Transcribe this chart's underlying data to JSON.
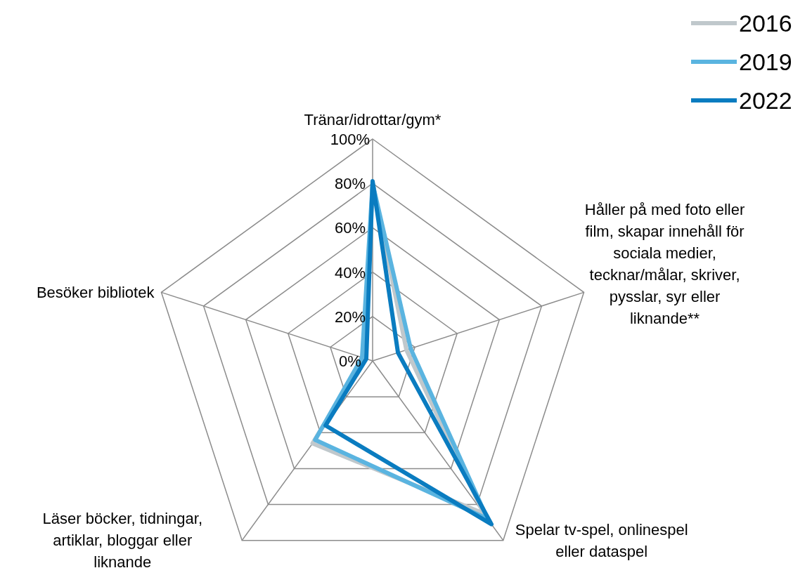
{
  "chart_data": {
    "type": "radar",
    "categories": [
      "Tränar/idrottar/gym*",
      "Håller på med foto eller film, skapar innehåll för sociala medier, tecknar/målar, skriver, pysslar, syr eller liknande**",
      "Spelar tv-spel, onlinespel eller dataspel",
      "Läser böcker, tidningar, artiklar, bloggar eller liknande",
      "Besöker bibliotek"
    ],
    "series": [
      {
        "name": "2016",
        "color": "#c0c8cc",
        "values": [
          80,
          16,
          85,
          46,
          4
        ]
      },
      {
        "name": "2019",
        "color": "#5ab4e0",
        "values": [
          80,
          18,
          88,
          44,
          5
        ]
      },
      {
        "name": "2022",
        "color": "#0a7cc0",
        "values": [
          81,
          12,
          91,
          36,
          3
        ]
      }
    ],
    "ylim": [
      0,
      100
    ],
    "yticks": [
      {
        "value": 0,
        "label": "0%"
      },
      {
        "value": 20,
        "label": "20%"
      },
      {
        "value": 40,
        "label": "40%"
      },
      {
        "value": 60,
        "label": "60%"
      },
      {
        "value": 80,
        "label": "80%"
      },
      {
        "value": 100,
        "label": "100%"
      }
    ],
    "grid": true,
    "legend": "top right",
    "marker": "none",
    "line_style": "solid"
  }
}
